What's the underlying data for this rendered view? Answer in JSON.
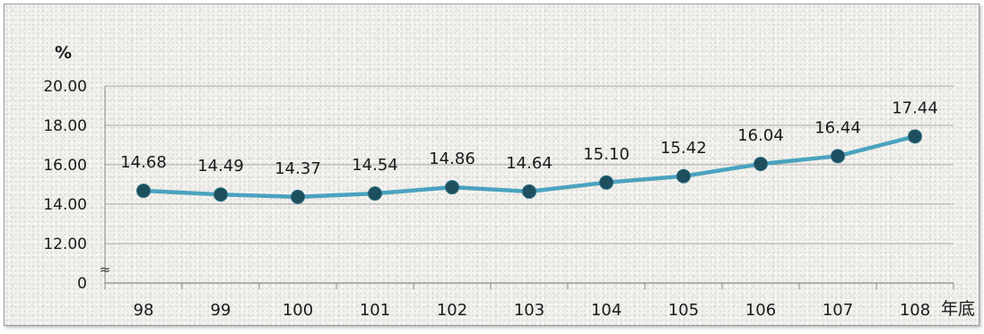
{
  "chart_data": {
    "type": "line",
    "title": "",
    "y_unit": "%",
    "x_unit": "年底",
    "categories": [
      "98",
      "99",
      "100",
      "101",
      "102",
      "103",
      "104",
      "105",
      "106",
      "107",
      "108"
    ],
    "series": [
      {
        "values": [
          14.68,
          14.49,
          14.37,
          14.54,
          14.86,
          14.64,
          15.1,
          15.42,
          16.04,
          16.44,
          17.44
        ],
        "labels": [
          "14.68",
          "14.49",
          "14.37",
          "14.54",
          "14.86",
          "14.64",
          "15.10",
          "15.42",
          "16.04",
          "16.44",
          "17.44"
        ]
      }
    ],
    "y_ticks": [
      "0",
      "12.00",
      "14.00",
      "16.00",
      "18.00",
      "20.00"
    ],
    "y_tick_values": [
      10,
      12,
      14,
      16,
      18,
      20
    ],
    "ylim": [
      10,
      20
    ],
    "axis_break": true,
    "axis_break_symbol": "≈",
    "grid": true,
    "line_color": "#4aa3bf",
    "marker_color": "#1d4f5f"
  }
}
